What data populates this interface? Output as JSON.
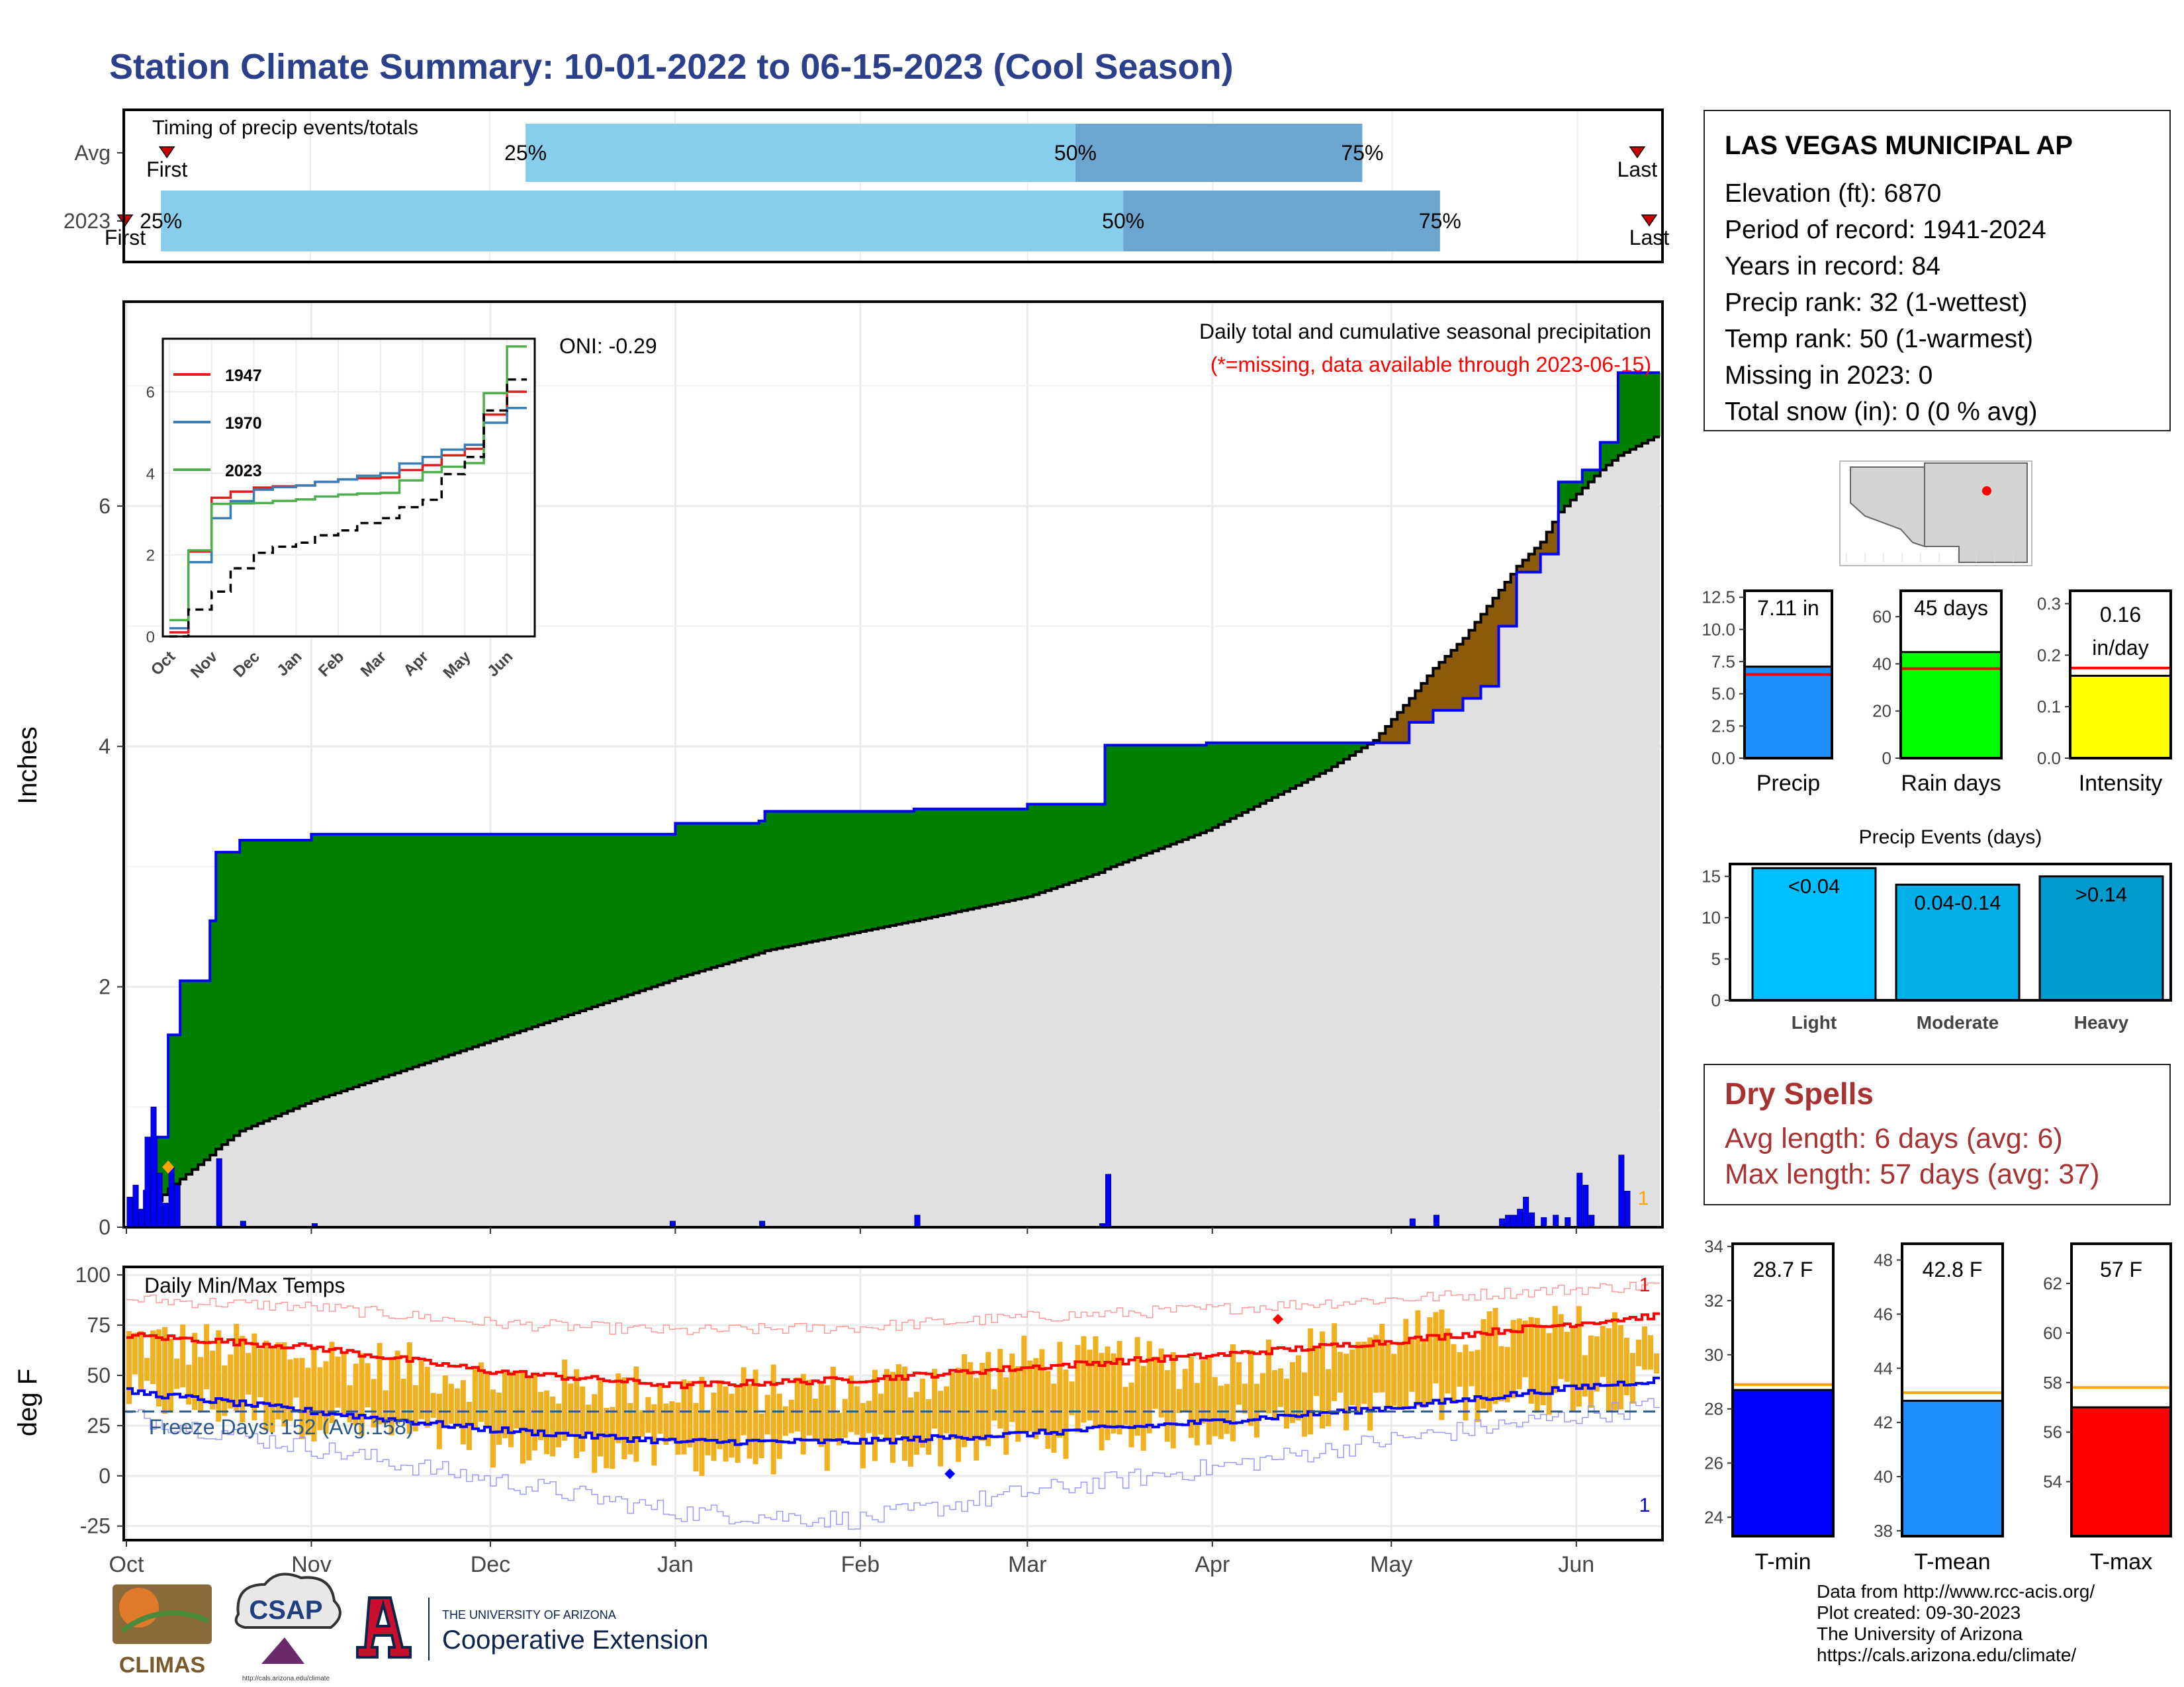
{
  "title": "Station Climate Summary: 10-01-2022 to 06-15-2023 (Cool Season)",
  "timing": {
    "label": "Timing of precip events/totals",
    "rows": [
      {
        "name": "Avg",
        "first": "2022-10-08",
        "last": "2023-06-11",
        "p25": "2022-12-07",
        "p50": "2023-03-09",
        "p75": "2023-04-26"
      },
      {
        "name": "2023",
        "first": "2022-10-01",
        "last": "2023-06-13",
        "p25": "2022-10-07",
        "p50": "2023-03-17",
        "p75": "2023-05-09"
      }
    ],
    "pct_labels": [
      "25%",
      "50%",
      "75%"
    ],
    "first_label": "First",
    "last_label": "Last",
    "colors": {
      "light": "#87ceeb",
      "dark": "#6aa6cd",
      "marker": "#cc0000"
    }
  },
  "precip_panel": {
    "ylabel": "Inches",
    "yticks": [
      0,
      2,
      4,
      6
    ],
    "ylim": [
      0,
      7.7
    ],
    "xticks": [
      "Oct",
      "Nov",
      "Dec",
      "Jan",
      "Feb",
      "Mar",
      "Apr",
      "May",
      "Jun"
    ],
    "oni": "ONI: -0.29",
    "note1": "Daily total and cumulative seasonal precipitation",
    "note2": "(*=missing, data available through 2023-06-15)",
    "corner_count": "1",
    "colors": {
      "above": "#008000",
      "below": "#8b5a0b",
      "avg_fill": "#e0e0e0",
      "line": "#0000ff",
      "bars": "#0000ff",
      "note2": "#ff0000"
    }
  },
  "inset": {
    "series": [
      {
        "name": "1947",
        "color": "#e41a1c"
      },
      {
        "name": "1970",
        "color": "#377eb8"
      },
      {
        "name": "2023",
        "color": "#4daf4a"
      }
    ],
    "yticks": [
      0,
      2,
      4,
      6
    ],
    "xticks": [
      "Oct",
      "Nov",
      "Dec",
      "Jan",
      "Feb",
      "Mar",
      "Apr",
      "May",
      "Jun"
    ]
  },
  "stat_bars": [
    {
      "label": "Precip",
      "value_text": "7.11 in",
      "value": 7.11,
      "avg": 6.5,
      "ymax": 13,
      "ticks": [
        "0.0",
        "2.5",
        "5.0",
        "7.5",
        "10.0",
        "12.5"
      ],
      "tickvals": [
        0,
        2.5,
        5,
        7.5,
        10,
        12.5
      ],
      "color": "#1e90ff"
    },
    {
      "label": "Rain days",
      "value_text": "45 days",
      "value": 45,
      "avg": 38,
      "ymax": 71,
      "ticks": [
        "0",
        "20",
        "40",
        "60"
      ],
      "tickvals": [
        0,
        20,
        40,
        60
      ],
      "color": "#00ff00"
    },
    {
      "label": "Intensity",
      "value_text": "0.16",
      "value_text2": "in/day",
      "value": 0.16,
      "avg": 0.175,
      "ymax": 0.325,
      "ticks": [
        "0.0",
        "0.1",
        "0.2",
        "0.3"
      ],
      "tickvals": [
        0,
        0.1,
        0.2,
        0.3
      ],
      "color": "#ffff00"
    }
  ],
  "events": {
    "title": "Precip Events (days)",
    "categories": [
      "Light",
      "Moderate",
      "Heavy"
    ],
    "labels": [
      "<0.04",
      "0.04-0.14",
      ">0.14"
    ],
    "values": [
      16,
      14,
      15
    ],
    "ticks": [
      "0",
      "5",
      "10",
      "15"
    ],
    "tickvals": [
      0,
      5,
      10,
      15
    ],
    "ymax": 16.5,
    "colors": [
      "#00bfff",
      "#00aee8",
      "#009acd"
    ]
  },
  "temp_panel": {
    "ylabel": "deg F",
    "label": "Daily Min/Max Temps",
    "yticks": [
      -25,
      0,
      25,
      50,
      75,
      100
    ],
    "ylim": [
      -32,
      104
    ],
    "freeze_text": "Freeze Days: 152 (Avg.158)",
    "freeze_line": 32,
    "xticks": [
      "Oct",
      "Nov",
      "Dec",
      "Jan",
      "Feb",
      "Mar",
      "Apr",
      "May",
      "Jun"
    ],
    "top_count": "1",
    "bottom_count": "1",
    "colors": {
      "bar": "#f0b020",
      "avg_max": "#ff0000",
      "avg_min": "#0000ff",
      "rec_max": "#ff9a9a",
      "rec_min": "#9a9aff",
      "freeze": "#2b5a8a"
    }
  },
  "temp_stats": [
    {
      "label": "T-min",
      "value_text": "28.7 F",
      "value": 28.7,
      "avg": 28.9,
      "ymin": 23.3,
      "ymax": 34.1,
      "ticks": [
        "24",
        "26",
        "28",
        "30",
        "32",
        "34"
      ],
      "tickvals": [
        24,
        26,
        28,
        30,
        32,
        34
      ],
      "color": "#0000ff"
    },
    {
      "label": "T-mean",
      "value_text": "42.8 F",
      "value": 42.8,
      "avg": 43.1,
      "ymin": 37.8,
      "ymax": 48.6,
      "ticks": [
        "38",
        "40",
        "42",
        "44",
        "46",
        "48"
      ],
      "tickvals": [
        38,
        40,
        42,
        44,
        46,
        48
      ],
      "color": "#1e90ff"
    },
    {
      "label": "T-max",
      "value_text": "57 F",
      "value": 57,
      "avg": 57.8,
      "ymin": 51.8,
      "ymax": 63.6,
      "ticks": [
        "54",
        "56",
        "58",
        "60",
        "62"
      ],
      "tickvals": [
        54,
        56,
        58,
        60,
        62
      ],
      "color": "#ff0000"
    }
  ],
  "station": {
    "name": "LAS VEGAS MUNICIPAL AP",
    "lines": [
      "Elevation (ft): 6870",
      "Period of record: 1941-2024",
      "Years in record: 84",
      "Precip rank: 32 (1-wettest)",
      "Temp rank: 50 (1-warmest)",
      "Missing in 2023: 0",
      "Total snow (in): 0 (0 % avg)"
    ]
  },
  "dry_spells": {
    "title": "Dry Spells",
    "avg_line": "Avg length: 6 days (avg: 6)",
    "max_line": "Max length: 57 days (avg: 37)"
  },
  "credits": [
    "Data from http://www.rcc-acis.org/",
    "Plot created: 09-30-2023",
    "The University of Arizona",
    "https://cals.arizona.edu/climate/"
  ],
  "logos": {
    "climas": "CLIMAS",
    "csap": "CSAP",
    "csap_url": "http://cals.arizona.edu/climate",
    "ua_small": "THE UNIVERSITY OF ARIZONA",
    "ua_big": "Cooperative Extension"
  },
  "chart_data": [
    {
      "type": "area",
      "title": "Daily total and cumulative seasonal precipitation",
      "ylabel": "Inches",
      "ylim": [
        0,
        7.7
      ],
      "grid": true,
      "x": [
        "2022-10-01",
        "2022-10-04",
        "2022-10-06",
        "2022-10-08",
        "2022-10-10",
        "2022-10-15",
        "2022-10-16",
        "2022-10-20",
        "2022-11-01",
        "2022-12-31",
        "2023-01-01",
        "2023-01-15",
        "2023-01-16",
        "2023-02-10",
        "2023-03-01",
        "2023-03-13",
        "2023-03-14",
        "2023-03-31",
        "2023-04-20",
        "2023-04-28",
        "2023-05-04",
        "2023-05-08",
        "2023-05-13",
        "2023-05-16",
        "2023-05-19",
        "2023-05-22",
        "2023-05-26",
        "2023-05-29",
        "2023-06-02",
        "2023-06-05",
        "2023-06-08",
        "2023-06-15"
      ],
      "series": [
        {
          "name": "2023",
          "values": [
            0.0,
            0.3,
            0.75,
            1.6,
            2.05,
            2.55,
            3.12,
            3.22,
            3.27,
            3.27,
            3.36,
            3.38,
            3.46,
            3.48,
            3.52,
            3.52,
            4.01,
            4.03,
            4.03,
            4.03,
            4.2,
            4.3,
            4.4,
            4.5,
            5.0,
            5.45,
            5.6,
            6.2,
            6.3,
            6.53,
            7.11,
            7.11
          ]
        },
        {
          "name": "Avg",
          "values": [
            0.0,
            0.12,
            0.22,
            0.32,
            0.4,
            0.6,
            0.65,
            0.8,
            1.05,
            2.05,
            2.07,
            2.28,
            2.3,
            2.55,
            2.75,
            2.95,
            2.98,
            3.3,
            3.8,
            4.05,
            4.4,
            4.65,
            4.9,
            5.1,
            5.3,
            5.5,
            5.7,
            5.95,
            6.15,
            6.3,
            6.42,
            6.6
          ]
        }
      ]
    },
    {
      "type": "bar",
      "title": "Daily precipitation",
      "x": [
        "2022-10-01",
        "2022-10-02",
        "2022-10-03",
        "2022-10-04",
        "2022-10-05",
        "2022-10-06",
        "2022-10-07",
        "2022-10-08",
        "2022-10-09",
        "2022-10-16",
        "2022-10-20",
        "2022-11-01",
        "2022-12-31",
        "2023-01-15",
        "2023-02-10",
        "2023-03-13",
        "2023-03-14",
        "2023-05-04",
        "2023-05-08",
        "2023-05-19",
        "2023-05-20",
        "2023-05-21",
        "2023-05-22",
        "2023-05-23",
        "2023-05-24",
        "2023-05-26",
        "2023-05-28",
        "2023-05-30",
        "2023-06-01",
        "2023-06-02",
        "2023-06-03",
        "2023-06-08",
        "2023-06-09"
      ],
      "values": [
        0.25,
        0.35,
        0.15,
        0.75,
        1.0,
        0.45,
        0.2,
        0.5,
        0.35,
        0.57,
        0.05,
        0.03,
        0.05,
        0.05,
        0.1,
        0.03,
        0.44,
        0.07,
        0.1,
        0.07,
        0.1,
        0.1,
        0.15,
        0.25,
        0.12,
        0.08,
        0.1,
        0.08,
        0.45,
        0.35,
        0.1,
        0.6,
        0.3
      ]
    },
    {
      "type": "line",
      "title": "Daily Min/Max Temps",
      "ylabel": "deg F",
      "ylim": [
        -32,
        104
      ],
      "x": [
        "2022-10-01",
        "2022-11-01",
        "2022-12-01",
        "2023-01-01",
        "2023-02-01",
        "2023-03-01",
        "2023-04-01",
        "2023-05-01",
        "2023-06-01",
        "2023-06-15"
      ],
      "series": [
        {
          "name": "Avg max",
          "values": [
            70,
            64,
            52,
            45,
            48,
            54,
            60,
            67,
            76,
            80
          ]
        },
        {
          "name": "Avg min",
          "values": [
            42,
            32,
            23,
            17,
            17,
            21,
            27,
            34,
            44,
            48
          ]
        },
        {
          "name": "Record max",
          "values": [
            88,
            84,
            76,
            72,
            74,
            79,
            83,
            88,
            93,
            95
          ]
        },
        {
          "name": "Record min",
          "values": [
            30,
            14,
            -2,
            -18,
            -22,
            -8,
            4,
            18,
            30,
            35
          ]
        },
        {
          "name": "Daily max",
          "values": [
            68,
            60,
            48,
            42,
            44,
            58,
            55,
            70,
            73,
            72
          ]
        },
        {
          "name": "Daily min",
          "values": [
            40,
            28,
            15,
            10,
            12,
            18,
            25,
            34,
            42,
            45
          ]
        }
      ]
    },
    {
      "type": "line",
      "title": "Inset cumulative precipitation",
      "x": [
        "Oct",
        "Nov",
        "Dec",
        "Jan",
        "Feb",
        "Mar",
        "Apr",
        "May",
        "Jun"
      ],
      "series": [
        {
          "name": "1947",
          "values": [
            0.1,
            3.4,
            3.65,
            3.7,
            3.85,
            3.9,
            4.2,
            4.6,
            6.0
          ]
        },
        {
          "name": "1970",
          "values": [
            0.2,
            2.9,
            3.6,
            3.7,
            3.85,
            4.0,
            4.4,
            4.7,
            5.6
          ]
        },
        {
          "name": "2023",
          "values": [
            0.4,
            3.25,
            3.27,
            3.36,
            3.48,
            3.52,
            4.03,
            4.25,
            7.11
          ]
        },
        {
          "name": "Avg",
          "values": [
            0.0,
            1.1,
            2.05,
            2.3,
            2.6,
            2.9,
            3.35,
            4.4,
            6.3
          ]
        }
      ]
    }
  ]
}
